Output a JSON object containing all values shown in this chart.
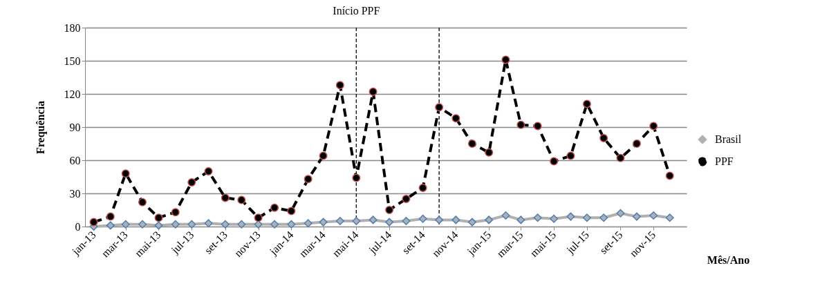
{
  "chart_data": {
    "type": "line",
    "xlabel": "Mês/Ano",
    "ylabel": "Frequência",
    "x": [
      "2013-01",
      "2013-02",
      "2013-03",
      "2013-04",
      "2013-05",
      "2013-06",
      "2013-07",
      "2013-08",
      "2013-09",
      "2013-10",
      "2013-11",
      "2013-12",
      "2014-01",
      "2014-02",
      "2014-03",
      "2014-04",
      "2014-05",
      "2014-06",
      "2014-07",
      "2014-08",
      "2014-09",
      "2014-10",
      "2014-11",
      "2014-12",
      "2015-01",
      "2015-02",
      "2015-03",
      "2015-04",
      "2015-05",
      "2015-06",
      "2015-07",
      "2015-08",
      "2015-09",
      "2015-10",
      "2015-11",
      "2015-12"
    ],
    "series": [
      {
        "name": "Brasil",
        "color": "#b0b0b0",
        "marker": "diamond",
        "line_style": "solid",
        "values": [
          0,
          1,
          2,
          2,
          1,
          2,
          2,
          3,
          2,
          2,
          2,
          2,
          2,
          3,
          4,
          5,
          5,
          6,
          4,
          5,
          7,
          6,
          6,
          4,
          6,
          10,
          6,
          8,
          7,
          9,
          8,
          8,
          12,
          9,
          10,
          8
        ]
      },
      {
        "name": "PPF",
        "color": "#000000",
        "marker": "circle",
        "line_style": "dashed",
        "values": [
          4,
          9,
          48,
          22,
          8,
          13,
          40,
          50,
          26,
          24,
          8,
          17,
          14,
          43,
          64,
          128,
          44,
          122,
          15,
          25,
          35,
          108,
          98,
          75,
          67,
          151,
          92,
          91,
          59,
          64,
          111,
          80,
          62,
          75,
          91,
          46
        ]
      }
    ],
    "xlim": [
      "2012-12-16",
      "2016-01-01"
    ],
    "xticks": [
      {
        "value": "2013-01",
        "label": "jan-13"
      },
      {
        "value": "2013-03",
        "label": "mar-13"
      },
      {
        "value": "2013-05",
        "label": "mai-13"
      },
      {
        "value": "2013-07",
        "label": "jul-13"
      },
      {
        "value": "2013-09",
        "label": "set-13"
      },
      {
        "value": "2013-11",
        "label": "nov-13"
      },
      {
        "value": "2014-01",
        "label": "jan-14"
      },
      {
        "value": "2014-03",
        "label": "mar-14"
      },
      {
        "value": "2014-05",
        "label": "mai-14"
      },
      {
        "value": "2014-07",
        "label": "jul-14"
      },
      {
        "value": "2014-09",
        "label": "set-14"
      },
      {
        "value": "2014-11",
        "label": "nov-14"
      },
      {
        "value": "2015-01",
        "label": "jan-15"
      },
      {
        "value": "2015-03",
        "label": "mar-15"
      },
      {
        "value": "2015-05",
        "label": "mai-15"
      },
      {
        "value": "2015-07",
        "label": "jul-15"
      },
      {
        "value": "2015-09",
        "label": "set-15"
      },
      {
        "value": "2015-11",
        "label": "nov-15"
      }
    ],
    "ylim": [
      0,
      180
    ],
    "yticks": [
      0,
      30,
      60,
      90,
      120,
      150,
      180
    ],
    "ref_lines": [
      {
        "axis": "x",
        "value": "2014-05",
        "label": "Início PPF",
        "line_style": "dashed",
        "color": "#000000"
      },
      {
        "axis": "x",
        "value": "2014-10",
        "line_style": "dashed",
        "color": "#000000"
      }
    ],
    "grid": "y",
    "legend": "right"
  }
}
